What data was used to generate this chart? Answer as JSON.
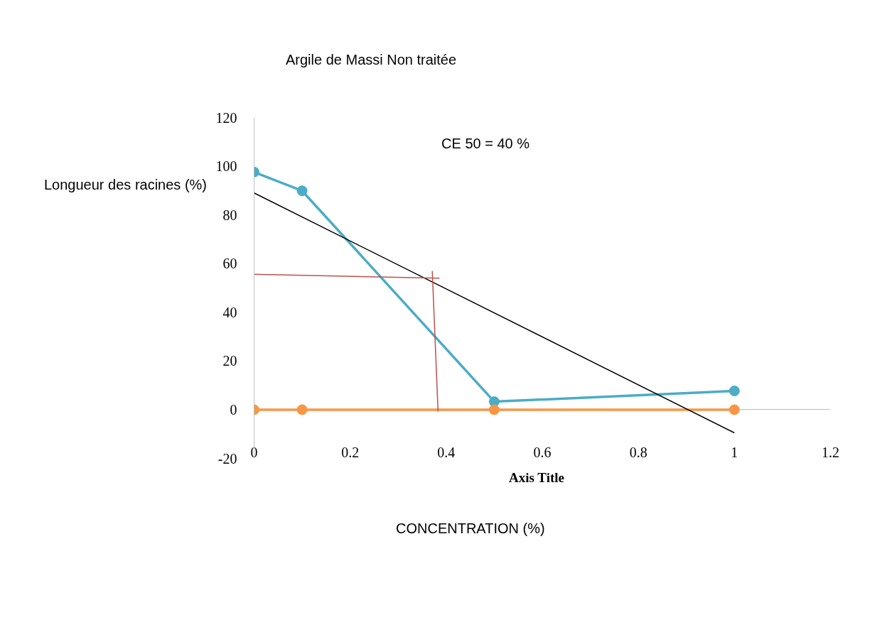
{
  "chart_data": {
    "type": "line",
    "title": "Argile de Massi Non traitée",
    "xlabel": "Axis Title",
    "ylabel": "Longueur des racines (%)",
    "annotations": [
      "CE 50 = 40 %",
      "CONCENTRATION  (%)"
    ],
    "x": [
      0,
      0.1,
      0.5,
      1
    ],
    "series": [
      {
        "color": "#4bacc6",
        "values": [
          97.6,
          89.9,
          3.3,
          7.7
        ],
        "marker": "circle"
      },
      {
        "color": "#f79646",
        "values": [
          0,
          0,
          0,
          0
        ],
        "marker": "circle"
      },
      {
        "color": "#000000",
        "x": [
          0,
          1
        ],
        "values": [
          89,
          -9.5
        ],
        "marker": "none"
      },
      {
        "color": "#c0504d",
        "x": [
          0,
          0.386
        ],
        "values": [
          55.6,
          54
        ],
        "marker": "none"
      },
      {
        "color": "#c0504d",
        "x": [
          0.371,
          0.383
        ],
        "values": [
          57,
          -0.8
        ],
        "marker": "none"
      }
    ],
    "xlim": [
      0,
      1.2
    ],
    "ylim": [
      -20,
      120
    ],
    "xticks": [
      0,
      0.2,
      0.4,
      0.6,
      0.8,
      1,
      1.2
    ],
    "yticks": [
      -20,
      0,
      20,
      40,
      60,
      80,
      100,
      120
    ]
  }
}
